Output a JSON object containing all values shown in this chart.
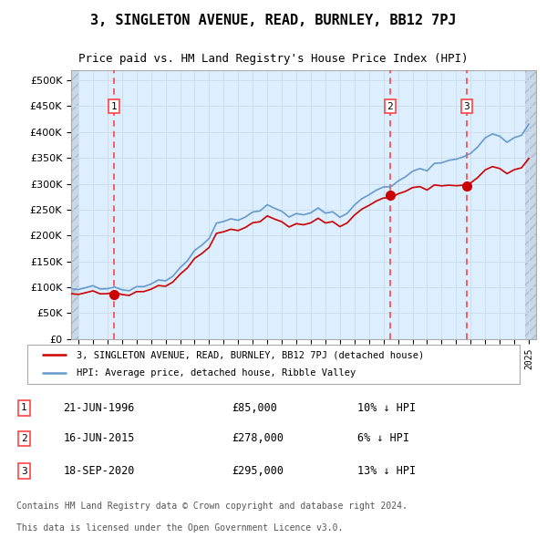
{
  "title": "3, SINGLETON AVENUE, READ, BURNLEY, BB12 7PJ",
  "subtitle": "Price paid vs. HM Land Registry's House Price Index (HPI)",
  "legend_line1": "3, SINGLETON AVENUE, READ, BURNLEY, BB12 7PJ (detached house)",
  "legend_line2": "HPI: Average price, detached house, Ribble Valley",
  "footnote1": "Contains HM Land Registry data © Crown copyright and database right 2024.",
  "footnote2": "This data is licensed under the Open Government Licence v3.0.",
  "sales": [
    {
      "label": "1",
      "date": "21-JUN-1996",
      "price": 85000,
      "note": "10% ↓ HPI",
      "year": 1996.47
    },
    {
      "label": "2",
      "date": "16-JUN-2015",
      "price": 278000,
      "note": "6% ↓ HPI",
      "year": 2015.45
    },
    {
      "label": "3",
      "date": "18-SEP-2020",
      "price": 295000,
      "note": "13% ↓ HPI",
      "year": 2020.71
    }
  ],
  "hpi_color": "#6699cc",
  "sale_color": "#cc0000",
  "vline_color": "#ff4444",
  "marker_color": "#cc0000",
  "grid_color": "#ccddee",
  "background_plot": "#ddeeff",
  "ylim": [
    0,
    520000
  ],
  "xlim_start": 1993.5,
  "xlim_end": 2025.5,
  "yticks": [
    0,
    50000,
    100000,
    150000,
    200000,
    250000,
    300000,
    350000,
    400000,
    450000,
    500000
  ],
  "hpi_data_years": [
    1993.5,
    1994.0,
    1994.5,
    1995.0,
    1995.5,
    1996.0,
    1996.5,
    1997.0,
    1997.5,
    1998.0,
    1998.5,
    1999.0,
    1999.5,
    2000.0,
    2000.5,
    2001.0,
    2001.5,
    2002.0,
    2002.5,
    2003.0,
    2003.5,
    2004.0,
    2004.5,
    2005.0,
    2005.5,
    2006.0,
    2006.5,
    2007.0,
    2007.5,
    2008.0,
    2008.5,
    2009.0,
    2009.5,
    2010.0,
    2010.5,
    2011.0,
    2011.5,
    2012.0,
    2012.5,
    2013.0,
    2013.5,
    2014.0,
    2014.5,
    2015.0,
    2015.5,
    2016.0,
    2016.5,
    2017.0,
    2017.5,
    2018.0,
    2018.5,
    2019.0,
    2019.5,
    2020.0,
    2020.5,
    2021.0,
    2021.5,
    2022.0,
    2022.5,
    2023.0,
    2023.5,
    2024.0,
    2024.5,
    2025.0
  ],
  "hpi_data_values": [
    95000,
    96000,
    96500,
    97000,
    97500,
    98000,
    94000,
    92000,
    95000,
    99000,
    103000,
    108000,
    113000,
    120000,
    128000,
    140000,
    155000,
    170000,
    185000,
    200000,
    218000,
    228000,
    232000,
    235000,
    238000,
    245000,
    252000,
    258000,
    255000,
    248000,
    238000,
    235000,
    240000,
    248000,
    250000,
    248000,
    245000,
    243000,
    248000,
    258000,
    268000,
    278000,
    288000,
    295000,
    300000,
    308000,
    315000,
    320000,
    328000,
    332000,
    338000,
    342000,
    348000,
    345000,
    348000,
    355000,
    375000,
    390000,
    395000,
    388000,
    382000,
    390000,
    398000,
    420000
  ],
  "sale_data_years": [
    1996.47,
    2015.45,
    2020.71
  ],
  "sale_data_values": [
    85000,
    278000,
    295000
  ]
}
